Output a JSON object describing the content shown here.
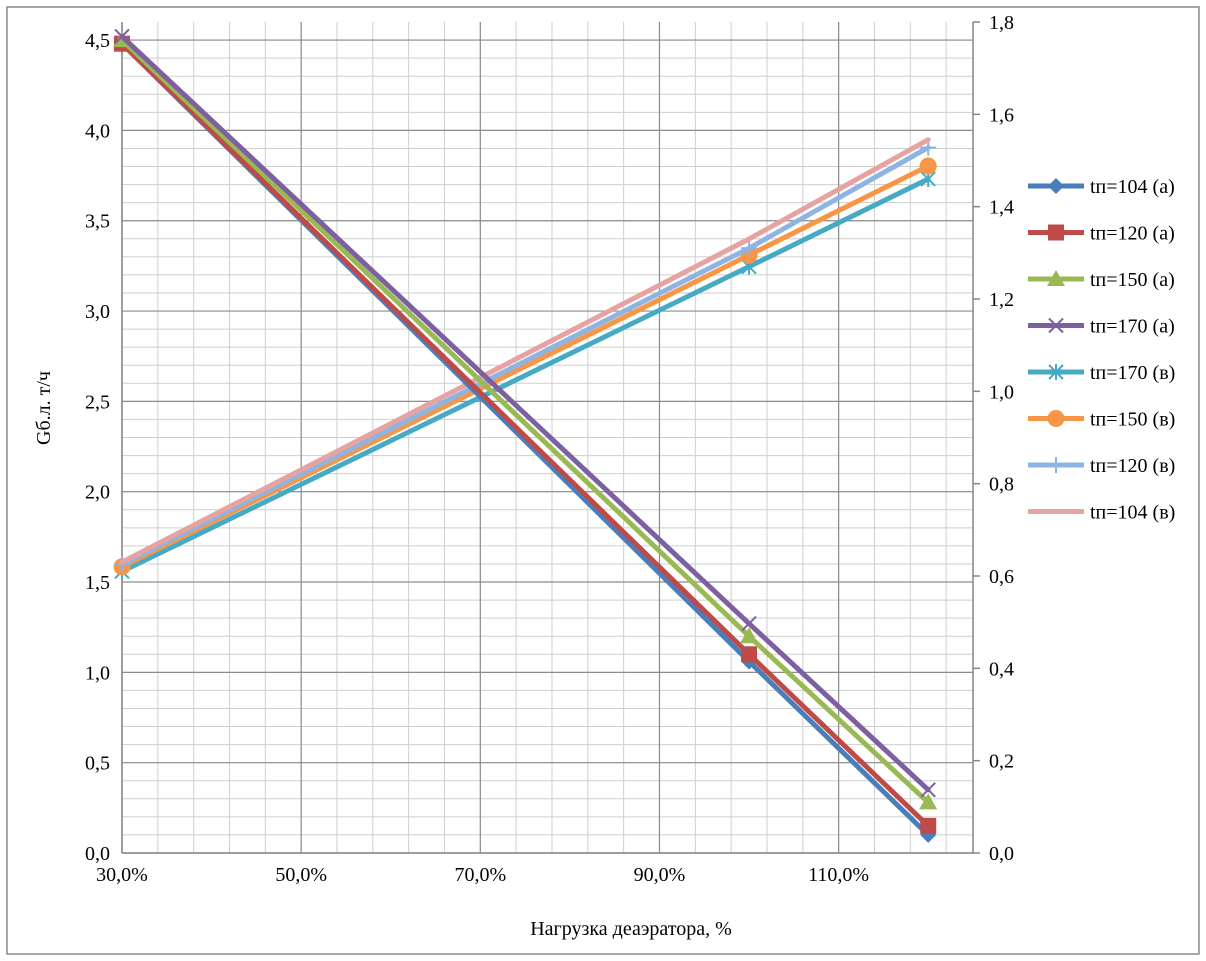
{
  "chart_data": {
    "type": "line",
    "title": "",
    "xlabel": "Нагрузка деаэратора, %",
    "ylabel": "Gб.л. т/ч",
    "y2label": "",
    "xlim": [
      30,
      125
    ],
    "ylim": [
      0,
      4.6
    ],
    "y2lim": [
      0,
      1.8
    ],
    "x_ticks": [
      "30,0%",
      "50,0%",
      "70,0%",
      "90,0%",
      "110,0%"
    ],
    "y_ticks": [
      "0,0",
      "0,5",
      "1,0",
      "1,5",
      "2,0",
      "2,5",
      "3,0",
      "3,5",
      "4,0",
      "4,5"
    ],
    "y2_ticks": [
      "0,0",
      "0,2",
      "0,4",
      "0,6",
      "0,8",
      "1,0",
      "1,2",
      "1,4",
      "1,6",
      "1,8"
    ],
    "grid": true,
    "legend_position": "right",
    "x": [
      30,
      100,
      120
    ],
    "series": [
      {
        "name": "tп=104 (а)",
        "axis": "left",
        "color": "#4a7ebb",
        "marker": "diamond",
        "values": [
          4.48,
          1.06,
          0.1
        ]
      },
      {
        "name": "tп=120 (а)",
        "axis": "left",
        "color": "#be4b48",
        "marker": "square",
        "values": [
          4.48,
          1.1,
          0.15
        ]
      },
      {
        "name": "tп=150 (а)",
        "axis": "left",
        "color": "#98b954",
        "marker": "triangle",
        "values": [
          4.5,
          1.2,
          0.28
        ]
      },
      {
        "name": "tп=170 (а)",
        "axis": "left",
        "color": "#7d60a0",
        "marker": "x",
        "values": [
          4.52,
          1.27,
          0.35
        ]
      },
      {
        "name": "tп=170 (в)",
        "axis": "right",
        "color": "#46aac5",
        "marker": "star",
        "values": [
          0.61,
          1.27,
          1.46
        ]
      },
      {
        "name": "tп=150 (в)",
        "axis": "right",
        "color": "#f79646",
        "marker": "circle",
        "values": [
          0.62,
          1.295,
          1.488
        ]
      },
      {
        "name": "tп=120 (в)",
        "axis": "right",
        "color": "#8eb4e3",
        "marker": "plus",
        "values": [
          0.625,
          1.31,
          1.528
        ]
      },
      {
        "name": "tп=104 (в)",
        "axis": "right",
        "color": "#e6a3a1",
        "marker": "none",
        "values": [
          0.63,
          1.33,
          1.545
        ]
      }
    ]
  }
}
